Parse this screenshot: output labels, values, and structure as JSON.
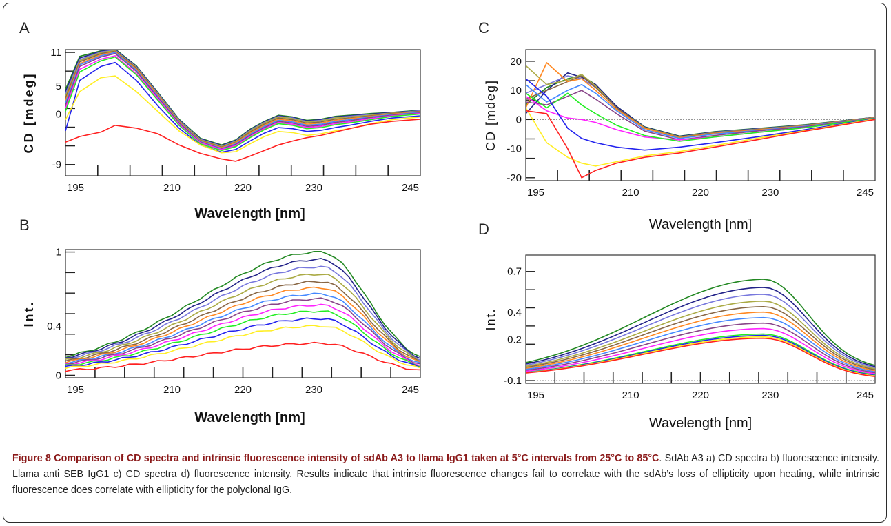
{
  "caption": {
    "title": "Figure 8 Comparison of CD spectra and intrinsic fluorescence intensity of sdAb A3 to llama IgG1 taken at 5°C intervals from 25°C to 85°C",
    "body": ". SdAb A3 a) CD spectra b) fluorescence intensity. Llama anti SEB IgG1 c) CD spectra d) fluorescence intensity. Results indicate that intrinsic fluorescence changes fail to correlate with the sdAb’s loss of ellipticity upon heating, while intrinsic fluorescence does correlate with ellipticity for the polyclonal IgG."
  },
  "colors": [
    "#ff2020",
    "#ffee22",
    "#2222ee",
    "#22ee22",
    "#ff22ff",
    "#884488",
    "#4488ff",
    "#ff8822",
    "#886644",
    "#aaaa44",
    "#7777dd",
    "#222288",
    "#228822"
  ],
  "chart_data": [
    {
      "panel": "A",
      "type": "line",
      "xlabel": "Wavelength [nm]",
      "ylabel": "CD [mdeg]",
      "xlim": [
        195,
        245
      ],
      "ylim": [
        -11,
        11.5
      ],
      "xticks": [
        "195",
        "210",
        "220",
        "230",
        "245"
      ],
      "xtick_values": [
        195,
        210,
        220,
        230,
        245
      ],
      "yticks": [
        "11",
        "5",
        "0",
        "-9"
      ],
      "ytick_values": [
        11,
        5,
        0,
        -9
      ],
      "x": [
        195,
        197,
        200,
        202,
        205,
        208,
        211,
        214,
        217,
        219,
        221,
        223,
        225,
        227,
        229,
        231,
        233,
        235,
        238,
        241,
        245
      ],
      "series": [
        {
          "values": [
            -5,
            -4,
            -3.2,
            -2,
            -2.5,
            -3.5,
            -5.5,
            -7,
            -8,
            -8.4,
            -7.5,
            -6.5,
            -5.5,
            -4.8,
            -4.2,
            -3.8,
            -3.2,
            -2.6,
            -1.8,
            -1.3,
            -0.9
          ]
        },
        {
          "values": [
            -1,
            4,
            6.5,
            6.8,
            4,
            0.5,
            -3,
            -5.5,
            -6.9,
            -6.7,
            -5.3,
            -4,
            -3.1,
            -3.3,
            -3.8,
            -3.5,
            -3,
            -2.6,
            -1.7,
            -1,
            -0.5
          ]
        },
        {
          "values": [
            -3,
            6,
            8.5,
            9.2,
            6,
            1.5,
            -2.5,
            -5.5,
            -6.8,
            -6.3,
            -4.8,
            -3.4,
            -2.4,
            -2.6,
            -3.1,
            -2.9,
            -2.4,
            -2,
            -1.3,
            -0.7,
            -0.3
          ]
        },
        {
          "values": [
            0.5,
            7.5,
            9.5,
            10.2,
            7,
            2.5,
            -2,
            -5.3,
            -6.5,
            -5.8,
            -4.2,
            -2.8,
            -1.7,
            -2,
            -2.6,
            -2.4,
            -1.9,
            -1.6,
            -1,
            -0.4,
            0
          ]
        },
        {
          "values": [
            1,
            8,
            9.8,
            10.4,
            7.2,
            2.8,
            -1.8,
            -5.1,
            -6.3,
            -5.6,
            -4,
            -2.6,
            -1.5,
            -1.8,
            -2.4,
            -2.2,
            -1.7,
            -1.4,
            -0.8,
            -0.3,
            0.1
          ]
        },
        {
          "values": [
            1.5,
            8.5,
            10.2,
            10.8,
            7.6,
            3,
            -1.6,
            -5,
            -6.2,
            -5.4,
            -3.8,
            -2.4,
            -1.3,
            -1.6,
            -2.2,
            -2,
            -1.5,
            -1.2,
            -0.6,
            -0.2,
            0.2
          ]
        },
        {
          "values": [
            2,
            8.8,
            10.4,
            11,
            7.8,
            3.2,
            -1.5,
            -4.9,
            -6.1,
            -5.3,
            -3.6,
            -2.2,
            -1.1,
            -1.4,
            -2,
            -1.8,
            -1.3,
            -1,
            -0.5,
            -0.1,
            0.3
          ]
        },
        {
          "values": [
            2.4,
            9,
            10.6,
            11.1,
            8,
            3.4,
            -1.4,
            -4.8,
            -6,
            -5.1,
            -3.4,
            -2,
            -0.9,
            -1.2,
            -1.8,
            -1.6,
            -1.1,
            -0.8,
            -0.4,
            0,
            0.4
          ]
        },
        {
          "values": [
            2.8,
            9.3,
            10.8,
            11.2,
            8.2,
            3.5,
            -1.3,
            -4.7,
            -5.9,
            -5,
            -3.2,
            -1.8,
            -0.7,
            -1,
            -1.6,
            -1.4,
            -0.9,
            -0.7,
            -0.3,
            0.1,
            0.5
          ]
        },
        {
          "values": [
            3.2,
            9.5,
            11,
            11.3,
            8.3,
            3.6,
            -1.2,
            -4.6,
            -5.8,
            -4.9,
            -3,
            -1.6,
            -0.5,
            -0.8,
            -1.4,
            -1.2,
            -0.7,
            -0.5,
            -0.2,
            0.2,
            0.5
          ]
        },
        {
          "values": [
            3.6,
            9.7,
            11.1,
            11.4,
            8.4,
            3.7,
            -1.1,
            -4.5,
            -5.7,
            -4.8,
            -2.9,
            -1.5,
            -0.4,
            -0.7,
            -1.3,
            -1.1,
            -0.6,
            -0.4,
            -0.1,
            0.2,
            0.6
          ]
        },
        {
          "values": [
            4,
            10,
            11.2,
            11.5,
            8.5,
            3.8,
            -1,
            -4.4,
            -5.6,
            -4.7,
            -2.8,
            -1.4,
            -0.3,
            -0.6,
            -1.2,
            -1,
            -0.5,
            -0.3,
            0,
            0.3,
            0.6
          ]
        },
        {
          "values": [
            4.4,
            10.3,
            11.3,
            11.6,
            8.6,
            3.9,
            -0.9,
            -4.3,
            -5.5,
            -4.6,
            -2.7,
            -1.3,
            -0.2,
            -0.5,
            -1.1,
            -0.9,
            -0.4,
            -0.2,
            0.1,
            0.3,
            0.7
          ]
        }
      ]
    },
    {
      "panel": "B",
      "type": "line",
      "xlabel": "Wavelength [nm]",
      "ylabel": "Int.",
      "xlim": [
        195,
        245
      ],
      "ylim": [
        -0.02,
        1.02
      ],
      "xticks": [
        "195",
        "210",
        "220",
        "230",
        "245"
      ],
      "xtick_values": [
        195,
        210,
        220,
        230,
        245
      ],
      "yticks": [
        "1",
        "0.4",
        "0"
      ],
      "ytick_values": [
        1,
        0.4,
        0
      ],
      "peak_x": 231,
      "series": [
        {
          "peak": 0.26
        },
        {
          "peak": 0.4
        },
        {
          "peak": 0.46
        },
        {
          "peak": 0.52
        },
        {
          "peak": 0.57
        },
        {
          "peak": 0.62
        },
        {
          "peak": 0.66
        },
        {
          "peak": 0.71
        },
        {
          "peak": 0.76
        },
        {
          "peak": 0.82
        },
        {
          "peak": 0.88
        },
        {
          "peak": 0.94
        },
        {
          "peak": 1.0
        }
      ]
    },
    {
      "panel": "C",
      "type": "line",
      "xlabel": "Wavelength [nm]",
      "ylabel": "CD [mdeg]",
      "xlim": [
        195,
        245
      ],
      "ylim": [
        -21,
        24
      ],
      "xticks": [
        "195",
        "210",
        "220",
        "230",
        "245"
      ],
      "xtick_values": [
        195,
        210,
        220,
        230,
        245
      ],
      "yticks": [
        "20",
        "10",
        "0",
        "-10",
        "-20"
      ],
      "ytick_values": [
        20,
        10,
        0,
        -10,
        -20
      ],
      "x": [
        195,
        198,
        201,
        203,
        205,
        208,
        212,
        217,
        222,
        228,
        235,
        245
      ],
      "series": [
        {
          "values": [
            3,
            2,
            -10,
            -20,
            -17.5,
            -15,
            -13,
            -11.5,
            -9.5,
            -7,
            -4,
            0
          ]
        },
        {
          "values": [
            4,
            -8,
            -13,
            -15,
            -16,
            -14.5,
            -12.5,
            -11,
            -9,
            -6.5,
            -3.8,
            0.2
          ]
        },
        {
          "values": [
            14,
            8,
            -3,
            -6.5,
            -8,
            -9.5,
            -10.5,
            -9.5,
            -8,
            -6,
            -3.5,
            0.3
          ]
        },
        {
          "values": [
            9,
            4,
            9,
            5,
            2,
            -2,
            -5.5,
            -7.5,
            -6,
            -4.5,
            -2.8,
            0.4
          ]
        },
        {
          "values": [
            8,
            3,
            0.5,
            0,
            -1,
            -3.5,
            -6,
            -7,
            -6,
            -4.5,
            -2.8,
            0.4
          ]
        },
        {
          "values": [
            6,
            5,
            8,
            10,
            7,
            2,
            -4,
            -7,
            -5.5,
            -4,
            -2.5,
            0.5
          ]
        },
        {
          "values": [
            12,
            6,
            10,
            12,
            9,
            3,
            -3.5,
            -6.5,
            -5,
            -3.8,
            -2.3,
            0.5
          ]
        },
        {
          "values": [
            4,
            19.5,
            13,
            14,
            10,
            3.5,
            -3,
            -6.3,
            -4.8,
            -3.6,
            -2.2,
            0.6
          ]
        },
        {
          "values": [
            7,
            10,
            13,
            15,
            11,
            4,
            -3,
            -6.2,
            -4.6,
            -3.5,
            -2.1,
            0.6
          ]
        },
        {
          "values": [
            18.5,
            12,
            13.5,
            15.5,
            11.5,
            4,
            -2.8,
            -6,
            -4.5,
            -3.4,
            -2,
            0.7
          ]
        },
        {
          "values": [
            9,
            12,
            15,
            14,
            11,
            4,
            -2.8,
            -6,
            -4.4,
            -3.3,
            -2,
            0.7
          ]
        },
        {
          "values": [
            2,
            10,
            16,
            14.5,
            12,
            4.5,
            -2.6,
            -5.8,
            -4.3,
            -3.2,
            -1.9,
            0.8
          ]
        },
        {
          "values": [
            5,
            11,
            14,
            15,
            12,
            4.5,
            -2.5,
            -5.7,
            -4.2,
            -3.1,
            -1.8,
            0.8
          ]
        }
      ]
    },
    {
      "panel": "D",
      "type": "line",
      "xlabel": "Wavelength [nm]",
      "ylabel": "Int.",
      "xlim": [
        195,
        245
      ],
      "ylim": [
        -0.12,
        0.82
      ],
      "xticks": [
        "195",
        "210",
        "220",
        "230",
        "245"
      ],
      "xtick_values": [
        195,
        210,
        220,
        230,
        245
      ],
      "yticks": [
        "0.7",
        "0.4",
        "0.2",
        "-0.1"
      ],
      "ytick_values": [
        0.7,
        0.4,
        0.2,
        -0.1
      ],
      "peak_x": 229,
      "series": [
        {
          "peak": 0.31
        },
        {
          "peak": 0.32
        },
        {
          "peak": 0.33
        },
        {
          "peak": 0.34
        },
        {
          "peak": 0.38
        },
        {
          "peak": 0.42
        },
        {
          "peak": 0.46
        },
        {
          "peak": 0.5
        },
        {
          "peak": 0.54
        },
        {
          "peak": 0.58
        },
        {
          "peak": 0.63
        },
        {
          "peak": 0.68
        },
        {
          "peak": 0.74
        }
      ]
    }
  ]
}
